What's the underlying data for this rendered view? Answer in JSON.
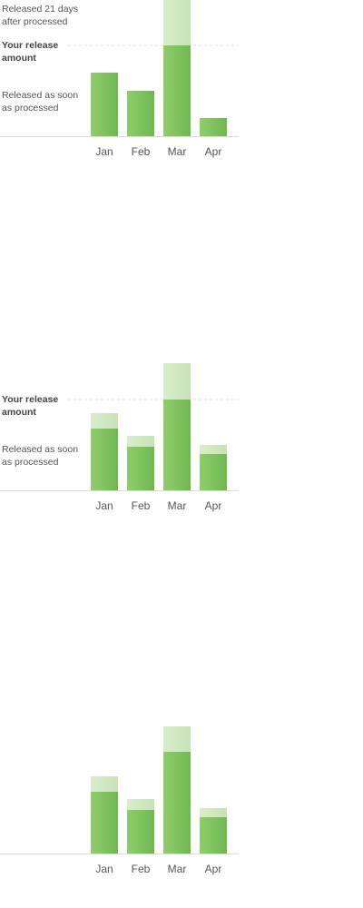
{
  "chart_data": [
    {
      "type": "bar",
      "stacked": true,
      "categories": [
        "Jan",
        "Feb",
        "Mar",
        "Apr"
      ],
      "series": [
        {
          "name": "Released as soon as processed",
          "color": "#7cc15a",
          "values": [
            70,
            50,
            100,
            20
          ]
        },
        {
          "name": "Released 21 days after processed",
          "color": "#cfe8c0",
          "values": [
            0,
            0,
            60,
            0
          ]
        }
      ],
      "ylim": [
        0,
        160
      ],
      "reference_line": {
        "label": "Your release amount",
        "value": 100
      },
      "labels": {
        "released_later": "Released 21 days after processed",
        "release_amount": "Your release amount",
        "released_now": "Released as soon as processed"
      }
    },
    {
      "type": "bar",
      "stacked": true,
      "categories": [
        "Jan",
        "Feb",
        "Mar",
        "Apr"
      ],
      "series": [
        {
          "name": "Released as soon as processed",
          "color": "#7cc15a",
          "values": [
            68,
            48,
            100,
            40
          ]
        },
        {
          "name": "Released 21 days after processed",
          "color": "#cfe8c0",
          "values": [
            17,
            12,
            40,
            10
          ]
        }
      ],
      "ylim": [
        0,
        160
      ],
      "reference_line": {
        "label": "Your release amount",
        "value": 100
      },
      "labels": {
        "release_amount": "Your release amount",
        "released_now": "Released as soon as processed"
      }
    },
    {
      "type": "bar",
      "stacked": true,
      "categories": [
        "Jan",
        "Feb",
        "Mar",
        "Apr"
      ],
      "series": [
        {
          "name": "Released as soon as processed",
          "color": "#7cc15a",
          "values": [
            68,
            48,
            112,
            40
          ]
        },
        {
          "name": "Released 21 days after processed",
          "color": "#cfe8c0",
          "values": [
            17,
            12,
            28,
            10
          ]
        }
      ],
      "ylim": [
        0,
        160
      ]
    }
  ]
}
